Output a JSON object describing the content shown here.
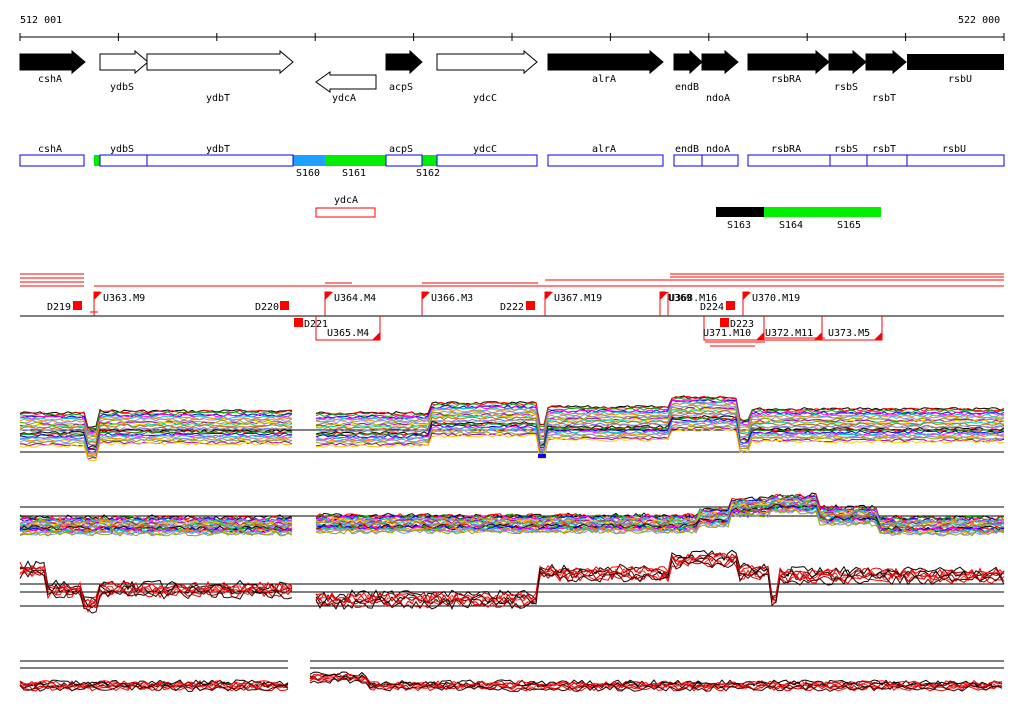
{
  "coords": {
    "start": "512 001",
    "end": "522 000"
  },
  "colors": {
    "black": "#000000",
    "blue": "#0000ff",
    "red": "#ff0000",
    "green": "#00ee00",
    "segment_blue": "#1ea0ff",
    "wave_palette": [
      "#000000",
      "#ff0000",
      "#00aa00",
      "#0000ff",
      "#ff00ff",
      "#00cccc",
      "#ff8800",
      "#8888ff",
      "#88aa00",
      "#aa00aa",
      "#ffcc00",
      "#00ddaa",
      "#cc6600",
      "#6666ff",
      "#999999"
    ]
  },
  "genes_top": [
    {
      "name": "cshA",
      "filled": true,
      "dir": "right"
    },
    {
      "name": "ydbS",
      "filled": false,
      "dir": "right"
    },
    {
      "name": "ydbT",
      "filled": false,
      "dir": "right"
    },
    {
      "name": "ydcA",
      "filled": false,
      "dir": "left"
    },
    {
      "name": "acpS",
      "filled": true,
      "dir": "right"
    },
    {
      "name": "ydcC",
      "filled": false,
      "dir": "right"
    },
    {
      "name": "alrA",
      "filled": true,
      "dir": "right"
    },
    {
      "name": "endB",
      "filled": true,
      "dir": "right"
    },
    {
      "name": "ndoA",
      "filled": true,
      "dir": "right"
    },
    {
      "name": "rsbRA",
      "filled": true,
      "dir": "right"
    },
    {
      "name": "rsbS",
      "filled": true,
      "dir": "right"
    },
    {
      "name": "rsbT",
      "filled": true,
      "dir": "right"
    },
    {
      "name": "rsbU",
      "filled": true,
      "dir": "right"
    }
  ],
  "genes_strip": [
    "cshA",
    "ydbS",
    "ydbT",
    "acpS",
    "ydcC",
    "alrA",
    "endB",
    "ndoA",
    "rsbRA",
    "rsbS",
    "rsbT",
    "rsbU"
  ],
  "gene_below": "ydcA",
  "segments": [
    "S160",
    "S161",
    "S162",
    "S163",
    "S164",
    "S165"
  ],
  "features_upper": [
    "U363.M9",
    "U364.M4",
    "U366.M3",
    "U367.M19",
    "U368.M16",
    "U369",
    "U370.M19"
  ],
  "features_lower": [
    "U365.M4",
    "U371.M10",
    "U372.M11",
    "U373.M5"
  ],
  "downshifts": [
    "D219",
    "D220",
    "D221",
    "D222",
    "D223",
    "D224"
  ]
}
